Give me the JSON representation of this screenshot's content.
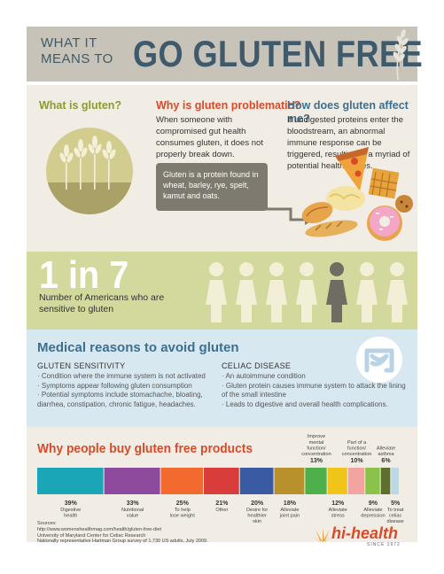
{
  "header": {
    "line1": "WHAT IT",
    "line2": "MEANS TO",
    "title": "GO GLUTEN FREE"
  },
  "intro": {
    "what_q": "What is gluten?",
    "why_q": "Why is gluten problematic?",
    "why_text": "When someone with compromised gut health consumes gluten, it does not properly break down.",
    "how_q": "How does gluten affect me?",
    "how_text": "If undigested proteins enter the bloodstream, an abnormal immune response can be triggered, resulting in a myriad of potential health issues.",
    "definition": "Gluten is a protein found in wheat, barley, rye, spelt, kamut and oats."
  },
  "stat": {
    "headline": "1 in 7",
    "text": "Number of Americans who are sensitive to gluten",
    "highlight_fraction": 0.142857
  },
  "medical": {
    "title": "Medical reasons to avoid gluten",
    "sensitivity": {
      "heading": "GLUTEN SENSITIVITY",
      "bullets": [
        "· Condition where the immune system is not activated",
        "· Symptoms appear following gluten consumption",
        "· Potential symptoms include stomachache, bloating, diarrhea, constipation, chronic fatigue, headaches."
      ]
    },
    "celiac": {
      "heading": "CELIAC DISEASE",
      "bullets": [
        "· An autoimmune condition",
        "· Gluten protein causes immune system to attack the lining of the small intestine",
        "· Leads to digestive and overall health complications."
      ]
    }
  },
  "chart_data": {
    "type": "bar",
    "title": "Why people buy gluten free products",
    "categories": [
      "Digestive health",
      "Nutritional value",
      "To help lose weight",
      "Other",
      "Desire for healthier skin",
      "Alleviate joint pain",
      "Improve mental function/ concentration",
      "Alleviate stress",
      "Part of a function/ concentration",
      "Alleviate depression",
      "Alleviate asthma",
      "To treat celiac disease"
    ],
    "values": [
      39,
      33,
      25,
      21,
      20,
      18,
      13,
      12,
      10,
      9,
      6,
      5
    ],
    "labels": [
      "39%",
      "33%",
      "25%",
      "21%",
      "20%",
      "18%",
      "13%",
      "12%",
      "10%",
      "9%",
      "6%",
      "5%"
    ],
    "label_position": [
      "below",
      "below",
      "below",
      "below",
      "below",
      "below",
      "above",
      "below",
      "above",
      "below",
      "above",
      "below"
    ],
    "colors": [
      "#1aa6b7",
      "#8e4a9c",
      "#f26a2e",
      "#d93d3b",
      "#3a5aa3",
      "#b8902c",
      "#4db04a",
      "#f0c419",
      "#f3a3a0",
      "#8bc34a",
      "#5c6f2e",
      "#b9d9e6"
    ]
  },
  "sources": {
    "heading": "Sources:",
    "lines": [
      "http://www.womenshealthmag.com/health/gluten-free-diet",
      "University of Maryland Center for Celiac Research",
      "Nationally representative Hartman Group survey of 1,730 US adults, July 2009."
    ]
  },
  "logo": {
    "name": "hi-health",
    "since": "SINCE 1972"
  },
  "colors": {
    "header_bg": "#c7c3b9",
    "header_text": "#3f5a6b",
    "cream": "#f1ede4",
    "green": "#d3d89c",
    "blue": "#d8e8f1",
    "accent_red": "#d94a2b"
  }
}
